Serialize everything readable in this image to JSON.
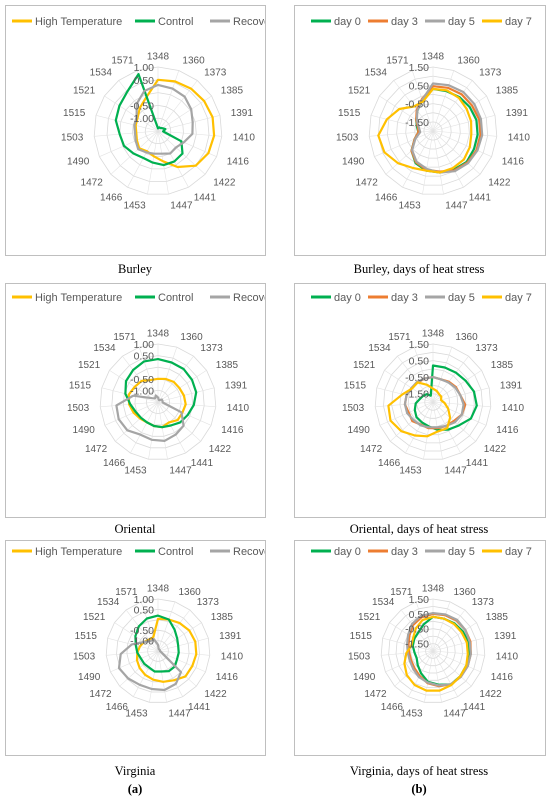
{
  "column_labels": [
    "(a)",
    "(b)"
  ],
  "chart_data": [
    {
      "type": "radar",
      "caption": "Burley",
      "categories": [
        "1348",
        "1360",
        "1373",
        "1385",
        "1391",
        "1410",
        "1416",
        "1422",
        "1441",
        "1447",
        "1453",
        "1466",
        "1472",
        "1490",
        "1503",
        "1515",
        "1521",
        "1534",
        "1571"
      ],
      "rlim": [
        -1.5,
        1.0
      ],
      "radial_ticks": [
        "1.00",
        "0.50",
        "-0.50",
        "-1.00"
      ],
      "legend_position": "top",
      "grid": true,
      "series": [
        {
          "name": "High Temperature",
          "color": "#FFC000",
          "values": [
            0.5,
            0.55,
            0.6,
            0.65,
            0.7,
            0.7,
            0.65,
            0.5,
            0.1,
            -0.3,
            -0.5,
            -0.6,
            -0.5,
            -0.6,
            -0.65,
            -0.6,
            -0.55,
            -0.35,
            -0.1
          ]
        },
        {
          "name": "Control",
          "color": "#00B050",
          "values": [
            -1.4,
            -1.35,
            -1.35,
            -1.3,
            -1.2,
            -1.3,
            -0.5,
            -0.2,
            -0.15,
            -0.15,
            -0.25,
            -0.3,
            -0.2,
            -0.05,
            0.0,
            0.2,
            0.3,
            0.45,
            0.85
          ]
        },
        {
          "name": "Recovery",
          "color": "#A5A5A5",
          "values": [
            0.3,
            0.25,
            0.2,
            0.05,
            -0.1,
            -0.15,
            -0.4,
            -0.55,
            -0.5,
            -0.6,
            -0.6,
            -0.55,
            -0.45,
            -0.55,
            -0.6,
            -0.55,
            -0.5,
            -0.15,
            0.15
          ]
        }
      ]
    },
    {
      "type": "radar",
      "caption": "Burley, days of heat stress",
      "categories": [
        "1348",
        "1360",
        "1373",
        "1385",
        "1391",
        "1410",
        "1416",
        "1422",
        "1441",
        "1447",
        "1453",
        "1466",
        "1472",
        "1490",
        "1503",
        "1515",
        "1521",
        "1534",
        "1571"
      ],
      "rlim": [
        -2.0,
        1.5
      ],
      "radial_ticks": [
        "1.50",
        "0.50",
        "-0.50",
        "-1.50"
      ],
      "legend_position": "top",
      "grid": true,
      "series": [
        {
          "name": "day 0",
          "color": "#00B050",
          "values": [
            0.3,
            0.3,
            0.35,
            0.4,
            0.45,
            0.45,
            0.45,
            0.5,
            0.4,
            0.3,
            0.2,
            0.0,
            -0.4,
            -0.9,
            -1.2,
            -1.1,
            -0.9,
            -0.6,
            -0.2
          ]
        },
        {
          "name": "day 3",
          "color": "#ED7D31",
          "values": [
            0.45,
            0.5,
            0.55,
            0.55,
            0.6,
            0.6,
            0.6,
            0.55,
            0.45,
            0.25,
            0.15,
            -0.05,
            -0.4,
            -0.9,
            -1.2,
            -1.15,
            -0.9,
            -0.55,
            -0.15
          ]
        },
        {
          "name": "day 5",
          "color": "#A5A5A5",
          "values": [
            0.6,
            0.65,
            0.7,
            0.7,
            0.7,
            0.7,
            0.65,
            0.6,
            0.5,
            0.3,
            0.1,
            -0.1,
            -0.45,
            -0.95,
            -1.3,
            -1.2,
            -0.95,
            -0.6,
            -0.2
          ]
        },
        {
          "name": "day 7",
          "color": "#FFC000",
          "values": [
            0.3,
            0.35,
            0.3,
            0.2,
            0.15,
            0.1,
            0.2,
            0.3,
            0.3,
            0.3,
            0.2,
            0.3,
            0.6,
            0.9,
            1.0,
            0.6,
            0.2,
            -0.3,
            -0.3
          ]
        }
      ]
    },
    {
      "type": "radar",
      "caption": "Oriental",
      "categories": [
        "1348",
        "1360",
        "1373",
        "1385",
        "1391",
        "1410",
        "1416",
        "1422",
        "1441",
        "1447",
        "1453",
        "1466",
        "1472",
        "1490",
        "1503",
        "1515",
        "1521",
        "1534",
        "1571"
      ],
      "rlim": [
        -1.5,
        1.0
      ],
      "radial_ticks": [
        "1.00",
        "0.50",
        "-0.50",
        "-1.00"
      ],
      "legend_position": "top",
      "grid": true,
      "series": [
        {
          "name": "High Temperature",
          "color": "#FFC000",
          "values": [
            -0.5,
            -0.45,
            -0.4,
            -0.4,
            -0.35,
            -0.3,
            -0.35,
            -0.35,
            -0.5,
            -0.4,
            -0.45,
            -0.5,
            -0.45,
            -0.35,
            -0.25,
            -0.2,
            -0.3,
            -0.35,
            -0.5
          ]
        },
        {
          "name": "Control",
          "color": "#00B050",
          "values": [
            0.35,
            0.3,
            0.3,
            0.25,
            0.2,
            0.05,
            -0.1,
            -0.2,
            -0.35,
            -0.4,
            -0.45,
            -0.5,
            -0.5,
            -0.45,
            -0.3,
            -0.05,
            0.15,
            0.25,
            0.35
          ]
        },
        {
          "name": "Recovery",
          "color": "#A5A5A5",
          "values": [
            -1.3,
            -1.4,
            -1.4,
            -1.3,
            -1.3,
            -1.3,
            -0.4,
            0.0,
            0.1,
            0.2,
            0.15,
            0.1,
            0.3,
            0.35,
            0.3,
            -0.4,
            -1.2,
            -1.3,
            -1.2
          ]
        }
      ]
    },
    {
      "type": "radar",
      "caption": "Oriental, days of heat stress",
      "categories": [
        "1348",
        "1360",
        "1373",
        "1385",
        "1391",
        "1410",
        "1416",
        "1422",
        "1441",
        "1447",
        "1453",
        "1466",
        "1472",
        "1490",
        "1503",
        "1515",
        "1521",
        "1534",
        "1571"
      ],
      "rlim": [
        -2.0,
        1.5
      ],
      "radial_ticks": [
        "1.50",
        "0.50",
        "-0.50",
        "-1.50"
      ],
      "legend_position": "top",
      "grid": true,
      "series": [
        {
          "name": "day 0",
          "color": "#00B050",
          "values": [
            0.2,
            0.2,
            0.25,
            0.35,
            0.55,
            0.65,
            0.5,
            0.1,
            -0.1,
            -0.3,
            -0.5,
            -0.6,
            -0.65,
            -0.8,
            -0.95,
            -1.2,
            -1.3,
            -1.4,
            -1.6
          ]
        },
        {
          "name": "day 3",
          "color": "#ED7D31",
          "values": [
            -0.5,
            -0.55,
            -0.45,
            -0.35,
            -0.3,
            -0.05,
            -0.1,
            -0.3,
            -0.35,
            -0.4,
            -0.4,
            -0.45,
            -0.3,
            -0.4,
            -0.3,
            -0.35,
            -0.45,
            -0.5,
            -0.5
          ]
        },
        {
          "name": "day 5",
          "color": "#A5A5A5",
          "values": [
            -0.5,
            -0.55,
            -0.5,
            -0.4,
            -0.3,
            -0.15,
            -0.1,
            -0.2,
            -0.35,
            -0.45,
            -0.45,
            -0.4,
            -0.4,
            -0.3,
            -0.3,
            -0.35,
            -0.45,
            -0.45,
            -0.5
          ]
        },
        {
          "name": "day 7",
          "color": "#FFC000",
          "values": [
            -1.2,
            -1.3,
            -1.4,
            -1.4,
            -1.5,
            -1.3,
            -1.0,
            -0.6,
            -0.2,
            -0.2,
            0.1,
            0.3,
            0.6,
            0.8,
            0.7,
            -0.1,
            -0.5,
            -0.5,
            -0.9
          ]
        }
      ]
    },
    {
      "type": "radar",
      "caption": "Virginia",
      "categories": [
        "1348",
        "1360",
        "1373",
        "1385",
        "1391",
        "1410",
        "1416",
        "1422",
        "1441",
        "1447",
        "1453",
        "1466",
        "1472",
        "1490",
        "1503",
        "1515",
        "1521",
        "1534",
        "1571"
      ],
      "rlim": [
        -1.5,
        1.0
      ],
      "radial_ticks": [
        "1.00",
        "0.50",
        "-0.50",
        "-1.00"
      ],
      "legend_position": "top",
      "grid": true,
      "series": [
        {
          "name": "High Temperature",
          "color": "#FFC000",
          "values": [
            0.05,
            0.1,
            0.2,
            0.3,
            0.35,
            0.35,
            0.3,
            0.3,
            0.1,
            0.0,
            -0.1,
            -0.2,
            -0.3,
            -0.4,
            -0.5,
            -0.6,
            -0.7,
            -0.8,
            -0.8
          ]
        },
        {
          "name": "Control",
          "color": "#00B050",
          "values": [
            0.2,
            0.1,
            -0.2,
            -0.4,
            -0.5,
            -0.5,
            -0.5,
            -0.4,
            -0.4,
            -0.5,
            -0.5,
            -0.6,
            -0.6,
            -0.6,
            -0.5,
            -0.4,
            -0.2,
            0.0,
            0.15
          ]
        },
        {
          "name": "Recovery",
          "color": "#A5A5A5",
          "values": [
            -1.2,
            -1.4,
            -1.4,
            -1.4,
            -1.4,
            -1.4,
            -1.3,
            0.0,
            0.3,
            0.4,
            0.35,
            0.35,
            0.45,
            0.55,
            0.3,
            -0.2,
            -0.7,
            -0.9,
            -0.9
          ]
        }
      ]
    },
    {
      "type": "radar",
      "caption": "Virginia, days of heat stress",
      "categories": [
        "1348",
        "1360",
        "1373",
        "1385",
        "1391",
        "1410",
        "1416",
        "1422",
        "1441",
        "1447",
        "1453",
        "1466",
        "1472",
        "1490",
        "1503",
        "1515",
        "1521",
        "1534",
        "1571"
      ],
      "rlim": [
        -2.0,
        1.5
      ],
      "radial_ticks": [
        "1.50",
        "0.50",
        "-0.50",
        "-1.50"
      ],
      "legend_position": "top",
      "grid": true,
      "series": [
        {
          "name": "day 0",
          "color": "#00B050",
          "values": [
            0.3,
            0.3,
            0.35,
            0.4,
            0.45,
            0.45,
            0.45,
            0.5,
            0.55,
            0.3,
            0.1,
            -0.3,
            -0.6,
            -0.8,
            -0.75,
            -0.6,
            -0.5,
            -0.4,
            -0.1
          ]
        },
        {
          "name": "day 3",
          "color": "#ED7D31",
          "values": [
            0.5,
            0.55,
            0.6,
            0.6,
            0.6,
            0.55,
            0.55,
            0.55,
            0.55,
            0.4,
            0.2,
            -0.1,
            -0.3,
            -0.4,
            -0.4,
            -0.3,
            -0.1,
            0.2,
            0.4
          ]
        },
        {
          "name": "day 5",
          "color": "#A5A5A5",
          "values": [
            0.55,
            0.6,
            0.65,
            0.6,
            0.55,
            0.55,
            0.55,
            0.55,
            0.55,
            0.35,
            0.15,
            0.0,
            -0.2,
            -0.3,
            -0.3,
            -0.2,
            0.0,
            0.3,
            0.5
          ]
        },
        {
          "name": "day 7",
          "color": "#FFC000",
          "values": [
            0.3,
            0.3,
            0.3,
            0.3,
            0.35,
            0.35,
            0.45,
            0.5,
            0.6,
            0.7,
            0.7,
            0.6,
            0.4,
            0.1,
            -0.2,
            -0.5,
            -0.4,
            -0.1,
            0.2
          ]
        }
      ]
    }
  ]
}
